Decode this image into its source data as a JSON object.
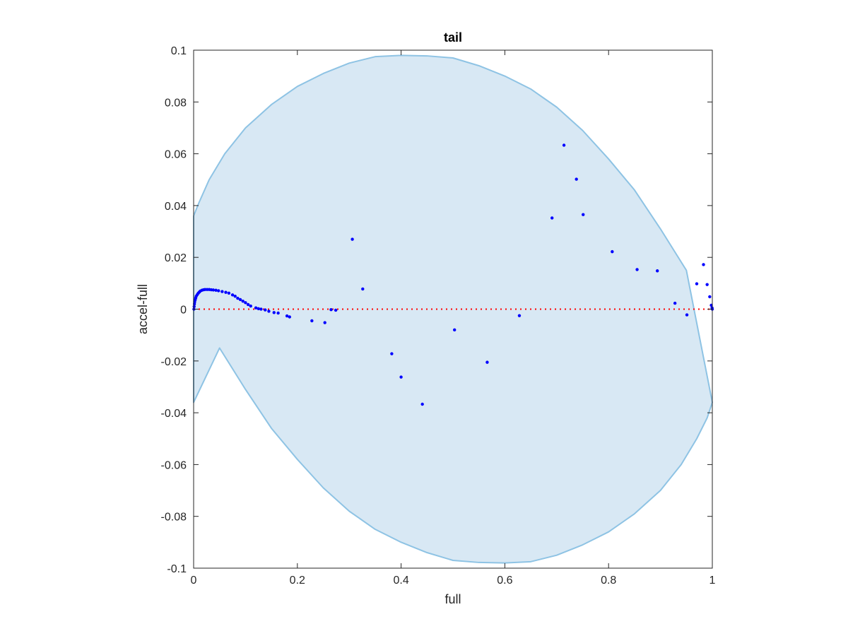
{
  "chart_data": {
    "type": "scatter",
    "title": "tail",
    "xlabel": "full",
    "ylabel": "accel-full",
    "xlim": [
      0,
      1
    ],
    "ylim": [
      -0.1,
      0.1
    ],
    "xticks": [
      "0",
      "0.2",
      "0.4",
      "0.6",
      "0.8",
      "1"
    ],
    "xtick_values": [
      0,
      0.2,
      0.4,
      0.6,
      0.8,
      1
    ],
    "yticks": [
      "0.1",
      "0.08",
      "0.06",
      "0.04",
      "0.02",
      "0",
      "-0.02",
      "-0.04",
      "-0.06",
      "-0.08",
      "-0.1"
    ],
    "ytick_values": [
      0.1,
      0.08,
      0.06,
      0.04,
      0.02,
      0,
      -0.02,
      -0.04,
      -0.06,
      -0.08,
      -0.1
    ],
    "grid": false,
    "reference_line": {
      "y": 0,
      "style": "dotted",
      "color": "#ff0000"
    },
    "region": {
      "shape": "ellipse",
      "center": [
        0.5,
        0
      ],
      "fill": "#d8e8f4",
      "stroke": "#8ec3e4",
      "boundary_points": [
        [
          0,
          -0.036
        ],
        [
          0,
          0.036
        ],
        [
          0.01,
          0.041
        ],
        [
          0.03,
          0.05
        ],
        [
          0.06,
          0.06
        ],
        [
          0.1,
          0.07
        ],
        [
          0.15,
          0.079
        ],
        [
          0.2,
          0.086
        ],
        [
          0.25,
          0.091
        ],
        [
          0.3,
          0.095
        ],
        [
          0.35,
          0.0975
        ],
        [
          0.4,
          0.098
        ],
        [
          0.45,
          0.0978
        ],
        [
          0.5,
          0.097
        ],
        [
          0.55,
          0.094
        ],
        [
          0.6,
          0.09
        ],
        [
          0.65,
          0.085
        ],
        [
          0.7,
          0.078
        ],
        [
          0.75,
          0.069
        ],
        [
          0.8,
          0.058
        ],
        [
          0.85,
          0.046
        ],
        [
          0.9,
          0.031
        ],
        [
          0.95,
          0.015
        ],
        [
          1,
          -0.036
        ],
        [
          0.99,
          -0.042
        ],
        [
          0.97,
          -0.05
        ],
        [
          0.94,
          -0.06
        ],
        [
          0.9,
          -0.07
        ],
        [
          0.85,
          -0.079
        ],
        [
          0.8,
          -0.086
        ],
        [
          0.75,
          -0.091
        ],
        [
          0.7,
          -0.095
        ],
        [
          0.65,
          -0.0975
        ],
        [
          0.6,
          -0.098
        ],
        [
          0.55,
          -0.0978
        ],
        [
          0.5,
          -0.097
        ],
        [
          0.45,
          -0.094
        ],
        [
          0.4,
          -0.09
        ],
        [
          0.35,
          -0.085
        ],
        [
          0.3,
          -0.078
        ],
        [
          0.25,
          -0.069
        ],
        [
          0.2,
          -0.058
        ],
        [
          0.15,
          -0.046
        ],
        [
          0.1,
          -0.031
        ],
        [
          0.05,
          -0.015
        ]
      ]
    },
    "series": [
      {
        "color": "#0000ff",
        "points": [
          [
            0.0005,
            0.0
          ],
          [
            0.001,
            0.001
          ],
          [
            0.0015,
            0.002
          ],
          [
            0.002,
            0.0028
          ],
          [
            0.003,
            0.0036
          ],
          [
            0.004,
            0.0043
          ],
          [
            0.005,
            0.005
          ],
          [
            0.007,
            0.0056
          ],
          [
            0.009,
            0.0062
          ],
          [
            0.011,
            0.0066
          ],
          [
            0.013,
            0.007
          ],
          [
            0.016,
            0.0073
          ],
          [
            0.019,
            0.0075
          ],
          [
            0.022,
            0.0076
          ],
          [
            0.026,
            0.0076
          ],
          [
            0.03,
            0.0076
          ],
          [
            0.034,
            0.0075
          ],
          [
            0.038,
            0.0074
          ],
          [
            0.043,
            0.0073
          ],
          [
            0.048,
            0.0071
          ],
          [
            0.055,
            0.0068
          ],
          [
            0.062,
            0.0065
          ],
          [
            0.068,
            0.0062
          ],
          [
            0.075,
            0.0055
          ],
          [
            0.08,
            0.005
          ],
          [
            0.085,
            0.0042
          ],
          [
            0.09,
            0.0037
          ],
          [
            0.095,
            0.0031
          ],
          [
            0.1,
            0.0025
          ],
          [
            0.105,
            0.0018
          ],
          [
            0.11,
            0.0012
          ],
          [
            0.12,
            0.0005
          ],
          [
            0.125,
            0.0002
          ],
          [
            0.13,
            0.0
          ],
          [
            0.138,
            -0.0003
          ],
          [
            0.145,
            -0.0008
          ],
          [
            0.155,
            -0.0013
          ],
          [
            0.163,
            -0.0015
          ],
          [
            0.18,
            -0.0026
          ],
          [
            0.185,
            -0.003
          ],
          [
            0.228,
            -0.0045
          ],
          [
            0.253,
            -0.0052
          ],
          [
            0.265,
            -0.0002
          ],
          [
            0.274,
            -0.0004
          ],
          [
            0.306,
            0.027
          ],
          [
            0.326,
            0.0078
          ],
          [
            0.382,
            -0.0172
          ],
          [
            0.4,
            -0.0262
          ],
          [
            0.441,
            -0.0367
          ],
          [
            0.503,
            -0.008
          ],
          [
            0.566,
            -0.0205
          ],
          [
            0.628,
            -0.0025
          ],
          [
            0.691,
            0.0352
          ],
          [
            0.714,
            0.0633
          ],
          [
            0.738,
            0.0502
          ],
          [
            0.751,
            0.0365
          ],
          [
            0.807,
            0.0222
          ],
          [
            0.855,
            0.0153
          ],
          [
            0.894,
            0.0148
          ],
          [
            0.928,
            0.0023
          ],
          [
            0.951,
            -0.0022
          ],
          [
            0.97,
            0.0098
          ],
          [
            0.983,
            0.0172
          ],
          [
            0.99,
            0.0095
          ],
          [
            0.995,
            0.0048
          ],
          [
            0.998,
            0.0015
          ],
          [
            0.9995,
            0.0005
          ],
          [
            1.0,
            0.0
          ]
        ]
      }
    ]
  }
}
